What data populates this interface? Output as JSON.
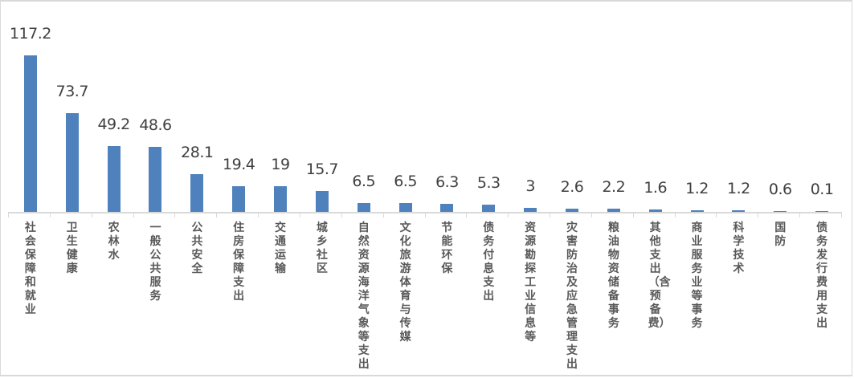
{
  "chart_data": {
    "type": "bar",
    "title": "",
    "xlabel": "",
    "ylabel": "",
    "ylim": [
      0,
      120
    ],
    "grid": false,
    "legend": null,
    "bar_color": "#4f81bd",
    "categories": [
      "社会保障和就业",
      "卫生健康",
      "农林水",
      "一般公共服务",
      "公共安全",
      "住房保障支出",
      "交通运输",
      "城乡社区",
      "自然资源海洋气象等支出",
      "文化旅游体育与传媒",
      "节能环保",
      "债务付息支出",
      "资源勘探工业信息等",
      "灾害防治及应急管理支出",
      "粮油物资储备事务",
      "其他支出（含预备费）",
      "商业服务业等事务",
      "科学技术",
      "国防",
      "债务发行费用支出"
    ],
    "values": [
      117.2,
      73.7,
      49.2,
      48.6,
      28.1,
      19.4,
      19,
      15.7,
      6.5,
      6.5,
      6.3,
      5.3,
      3,
      2.6,
      2.2,
      1.6,
      1.2,
      1.2,
      0.6,
      0.1
    ],
    "value_labels": [
      "117.2",
      "73.7",
      "49.2",
      "48.6",
      "28.1",
      "19.4",
      "19",
      "15.7",
      "6.5",
      "6.5",
      "6.3",
      "5.3",
      "3",
      "2.6",
      "2.2",
      "1.6",
      "1.2",
      "1.2",
      "0.6",
      "0.1"
    ]
  }
}
